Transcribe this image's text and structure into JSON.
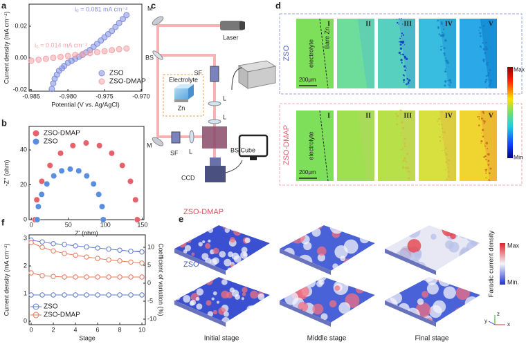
{
  "panel_labels": [
    "a",
    "b",
    "c",
    "d",
    "e",
    "f"
  ],
  "chart_data": [
    {
      "type": "scatter",
      "xlabel": "Potential (V vs. Ag/AgCl)",
      "ylabel": "Current density (mA cm⁻²)",
      "xlim": [
        -0.9853,
        -0.9699
      ],
      "ylim": [
        -0.0209,
        0.0339
      ],
      "xticks": [
        -0.985,
        {
          "value": -0.98,
          "label": "-0.980"
        },
        -0.975,
        {
          "value": -0.97,
          "label": "-0.970"
        }
      ],
      "yticks": [
        -0.02,
        {
          "value": 0,
          "label": "0.00"
        },
        0.02
      ],
      "series": [
        {
          "name": "ZSO",
          "color": "#8090dc",
          "x": [
            -0.9822,
            -0.982,
            -0.9818,
            -0.9815,
            -0.9812,
            -0.9808,
            -0.9805,
            -0.98,
            -0.9795,
            -0.979,
            -0.9785,
            -0.978,
            -0.9775,
            -0.977,
            -0.9765,
            -0.976,
            -0.9755,
            -0.975,
            -0.9745,
            -0.974,
            -0.9735,
            -0.973,
            -0.9725,
            -0.972
          ],
          "values": [
            -0.0195,
            -0.016,
            -0.013,
            -0.0105,
            -0.008,
            -0.0065,
            -0.005,
            -0.003,
            -0.0018,
            -0.0005,
            0.0008,
            0.002,
            0.0035,
            0.005,
            0.007,
            0.009,
            0.011,
            0.013,
            0.015,
            0.017,
            0.0195,
            0.022,
            0.0245,
            0.027
          ]
        },
        {
          "name": "ZSO-DMAP",
          "color": "#f2a4aa",
          "x": [
            -0.985,
            -0.984,
            -0.983,
            -0.982,
            -0.981,
            -0.98,
            -0.979,
            -0.978,
            -0.977,
            -0.976,
            -0.975,
            -0.974,
            -0.973,
            -0.972
          ],
          "values": [
            -0.0017,
            -0.0011,
            -0.0005,
            0.0001,
            0.0007,
            0.0013,
            0.0019,
            0.0025,
            0.0031,
            0.0037,
            0.0043,
            0.0049,
            0.0055,
            0.006
          ]
        }
      ],
      "annotations": [
        "i₀ = 0.081 mA cm⁻²",
        "i₀ = 0.014 mA cm⁻²"
      ],
      "legend": "lower right"
    },
    {
      "type": "scatter",
      "xlabel": "Z' (ohm)",
      "ylabel": "-Z'' (ohm)",
      "xlim": [
        -3,
        152
      ],
      "ylim": [
        0,
        53.5
      ],
      "xticks": [
        0,
        50,
        100,
        150
      ],
      "yticks": [
        0,
        20,
        40
      ],
      "series": [
        {
          "name": "ZSO-DMAP",
          "color": "#e8606a",
          "x": [
            5,
            7.4,
            14.2,
            25.2,
            39.5,
            56.1,
            74,
            91.9,
            108.5,
            122.8,
            133.8,
            140.6,
            143
          ],
          "values": [
            0,
            11.4,
            22,
            31.1,
            38.1,
            42.5,
            44,
            42.5,
            38.1,
            31.1,
            22,
            11.4,
            0
          ]
        },
        {
          "name": "ZSO",
          "color": "#5a8ee0",
          "x": [
            8,
            9.5,
            14,
            21,
            30.3,
            41,
            52.5,
            64,
            74.8,
            84,
            91,
            95.5,
            97
          ],
          "values": [
            0,
            7.5,
            14.5,
            20.5,
            25.1,
            28,
            29,
            28,
            25.1,
            20.5,
            14.5,
            7.5,
            0
          ]
        }
      ],
      "legend": "upper left"
    },
    {
      "type": "line",
      "xlabel": "Stage",
      "ylabel": "Current density (mA cm⁻²)",
      "y2label": "Coefficient of variation (%)",
      "x": [
        0,
        1,
        2,
        3,
        4,
        5,
        6,
        7,
        8,
        9,
        10
      ],
      "xlim": [
        -0.19,
        10.31
      ],
      "ylim": [
        -0.125,
        3.125
      ],
      "y2lim": [
        -11.54,
        13.46
      ],
      "xticks": [
        0,
        2,
        4,
        6,
        8,
        10
      ],
      "yticks": [
        0,
        1,
        2,
        3
      ],
      "y2ticks": [
        -10,
        -5,
        0,
        5,
        10
      ],
      "series": [
        {
          "name": "ZSO",
          "color": "#5a78d0",
          "values": [
            0.95,
            0.95,
            0.95,
            0.95,
            0.95,
            0.95,
            0.95,
            0.95,
            0.95,
            0.95,
            0.95
          ]
        },
        {
          "name": "ZSO-DMAP",
          "color": "#e87858",
          "values": [
            1.75,
            1.65,
            1.62,
            1.6,
            1.6,
            1.6,
            1.6,
            1.6,
            1.6,
            1.6,
            1.6
          ]
        },
        {
          "color": "#5a78d0",
          "axis": "y2",
          "values": [
            12,
            11.5,
            11,
            10.8,
            10.4,
            10.1,
            9.8,
            9.5,
            9.2,
            8.9,
            8.7
          ]
        },
        {
          "color": "#e87858",
          "axis": "y2",
          "values": [
            11.3,
            10,
            9,
            8.3,
            7.8,
            7.3,
            6.9,
            6.5,
            6.2,
            5.9,
            5.6
          ]
        }
      ],
      "legend": "lower left"
    }
  ],
  "optics": {
    "mirror_top": "M",
    "laser": "Laser",
    "beam_splitter": "BS",
    "spatial_filter_top": "SF",
    "electrolyte": "Electrolyte",
    "zn": "Zn",
    "lens_1": "L",
    "lens_2": "L",
    "bs_cube": "BS Cube",
    "mirror_bottom": "M",
    "spatial_filter_bottom": "SF",
    "lens_3": "L",
    "ccd": "CCD"
  },
  "imaging": {
    "rows": [
      {
        "name": "ZSO",
        "stages": [
          "I",
          "II",
          "III",
          "IV",
          "V"
        ]
      },
      {
        "name": "ZSO-DMAP",
        "stages": [
          "I",
          "II",
          "III",
          "IV",
          "V"
        ]
      }
    ],
    "electrolyte": "electrolyte",
    "bare_zn": "Bare Zn",
    "scale_bar": "200μm",
    "colorbar": [
      "Max",
      "Min"
    ]
  },
  "surface": {
    "rows": [
      "ZSO-DMAP",
      "ZSO"
    ],
    "stages": [
      "Initial stage",
      "Middle stage",
      "Final stage"
    ],
    "colorbar_title": "Faradic current density",
    "colorbar": [
      "Max",
      "Min."
    ],
    "axes": [
      "y",
      "z",
      "x"
    ]
  }
}
